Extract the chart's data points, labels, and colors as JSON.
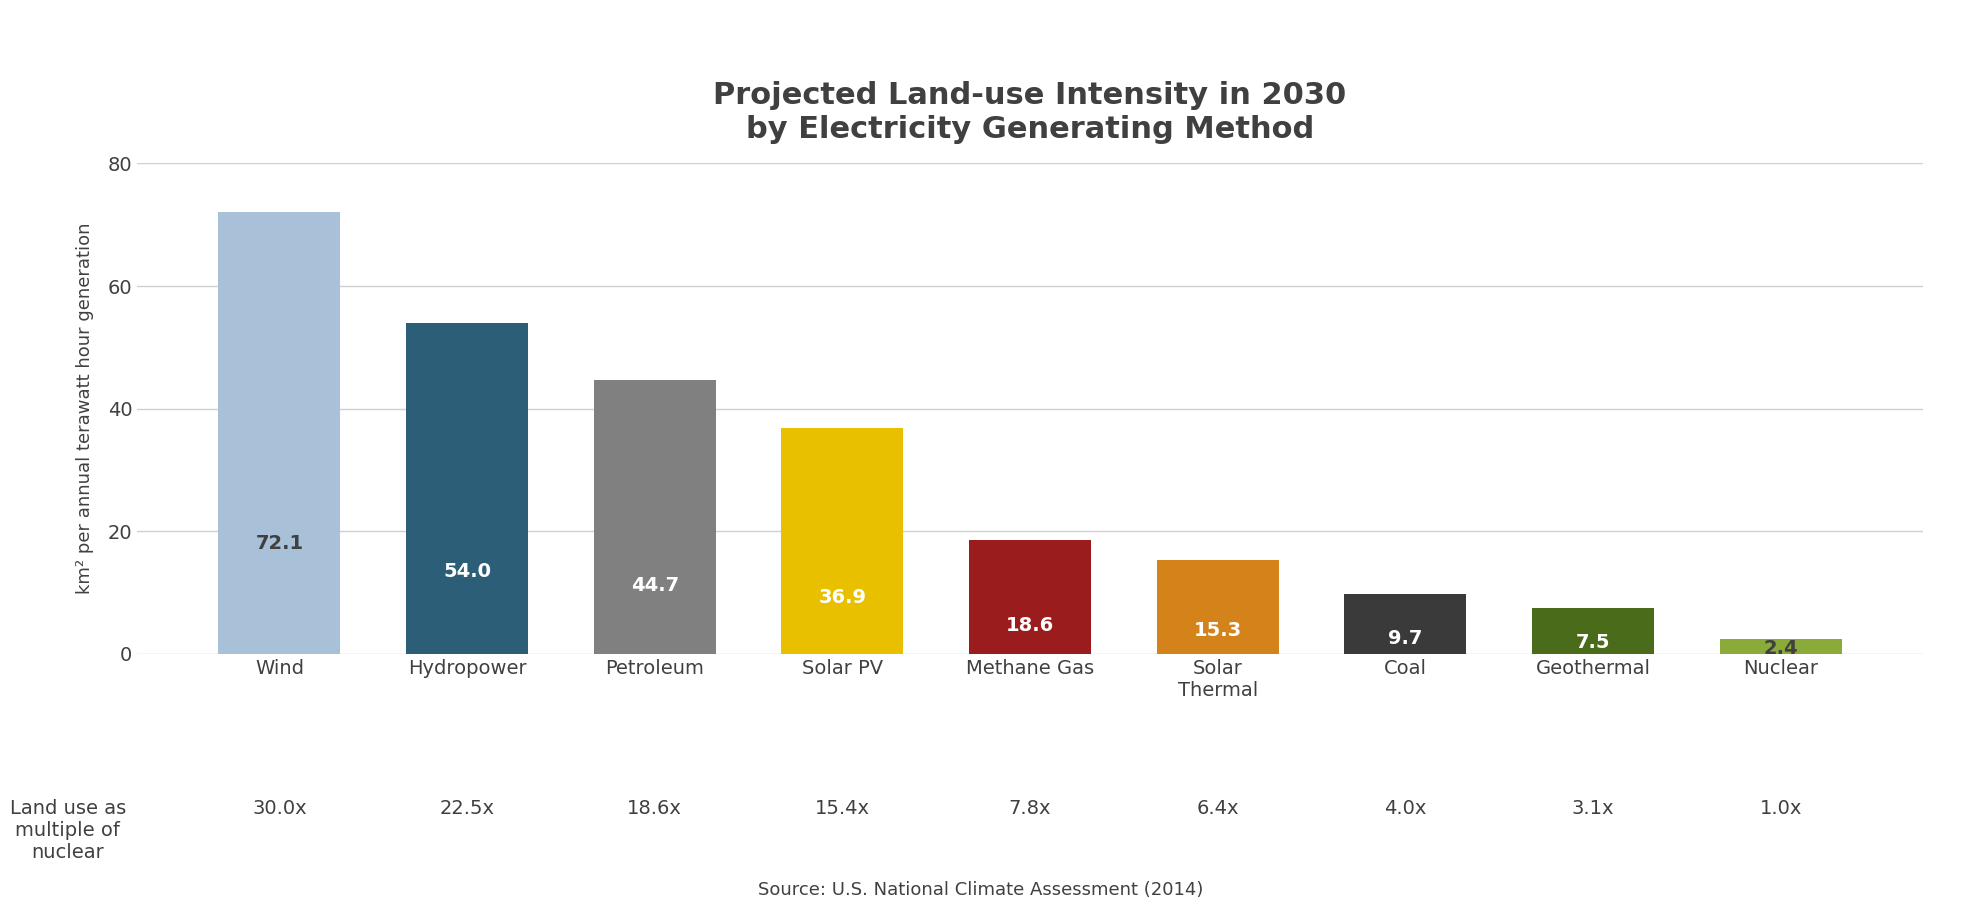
{
  "categories": [
    "Wind",
    "Hydropower",
    "Petroleum",
    "Solar PV",
    "Methane Gas",
    "Solar\nThermal",
    "Coal",
    "Geothermal",
    "Nuclear"
  ],
  "values": [
    72.1,
    54.0,
    44.7,
    36.9,
    18.6,
    15.3,
    9.7,
    7.5,
    2.4
  ],
  "bar_colors": [
    "#a8c0d8",
    "#2d5e78",
    "#808080",
    "#e8c000",
    "#9b1c1c",
    "#d4831a",
    "#3a3a3a",
    "#4a6b1a",
    "#8aaa3a"
  ],
  "multiples": [
    "30.0x",
    "22.5x",
    "18.6x",
    "15.4x",
    "7.8x",
    "6.4x",
    "4.0x",
    "3.1x",
    "1.0x"
  ],
  "title_line1": "Projected Land-use Intensity in 2030",
  "title_line2": "by Electricity Generating Method",
  "ylabel": "km² per annual terawatt hour generation",
  "ylim": [
    0,
    80
  ],
  "yticks": [
    0,
    20,
    40,
    60,
    80
  ],
  "source": "Source: U.S. National Climate Assessment (2014)",
  "land_use_label": "Land use as\nmultiple of\nnuclear",
  "value_label_colors": [
    "#404040",
    "#ffffff",
    "#ffffff",
    "#ffffff",
    "#ffffff",
    "#ffffff",
    "#ffffff",
    "#ffffff",
    "#404040"
  ],
  "background_color": "#ffffff",
  "plot_bg_color": "#ffffff",
  "grid_color": "#d0d0d0",
  "title_color": "#404040",
  "title_fontsize": 22,
  "tick_label_fontsize": 14,
  "value_fontsize": 14,
  "multiple_fontsize": 14,
  "ylabel_fontsize": 13
}
